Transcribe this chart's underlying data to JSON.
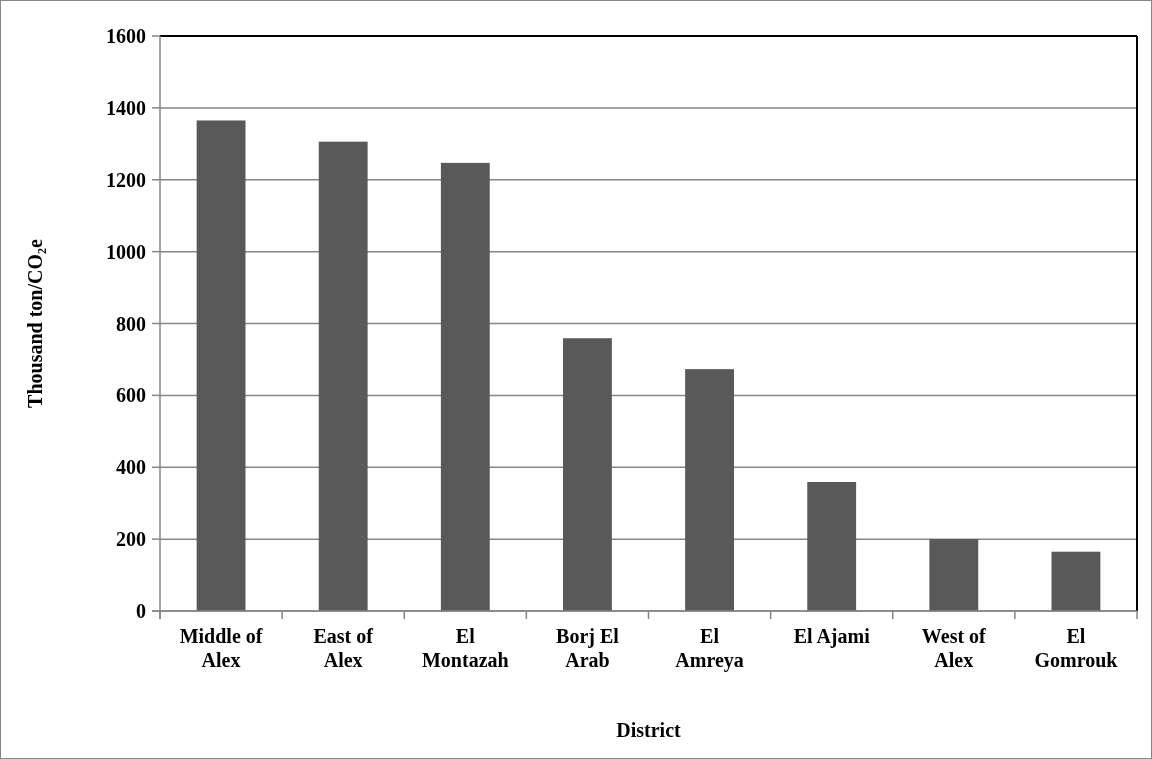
{
  "chart_data": {
    "type": "bar",
    "xlabel": "District",
    "ylabel": "Thousand ton/CO₂e",
    "categories": [
      "Middle of Alex",
      "East of Alex",
      "El Montazah",
      "Borj El Arab",
      "El Amreya",
      "El Ajami",
      "West of Alex",
      "El Gomrouk"
    ],
    "values": [
      1365,
      1306,
      1247,
      759,
      673,
      359,
      200,
      165
    ],
    "color": "#595959",
    "ylim": [
      0,
      1600
    ],
    "yticks": [
      0,
      200,
      400,
      600,
      800,
      1000,
      1200,
      1400,
      1600
    ],
    "grid": "y"
  }
}
